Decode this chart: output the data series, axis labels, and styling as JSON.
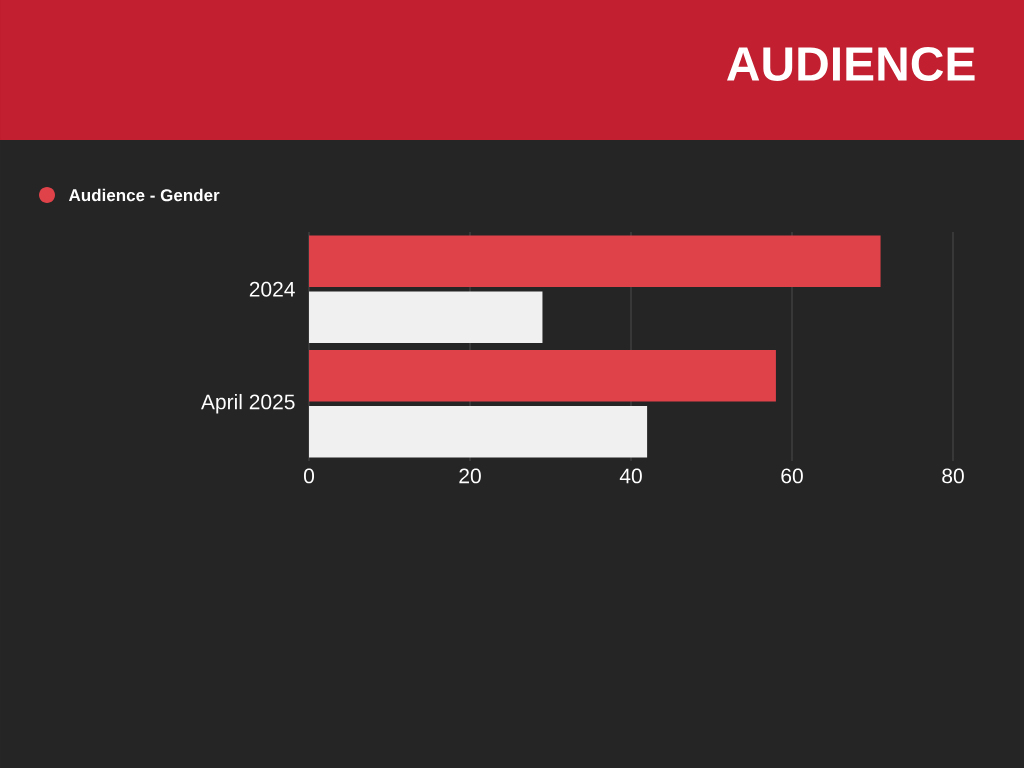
{
  "chart_data": {
    "type": "bar",
    "orientation": "horizontal",
    "title": "AUDIENCE",
    "categories": [
      "2024",
      "April 2025"
    ],
    "series": [
      {
        "name": "Audience - Gender",
        "color": "#e0424a",
        "values": [
          71,
          58
        ]
      },
      {
        "color": "#f0f0f0",
        "values": [
          29,
          42
        ]
      }
    ],
    "xlim": [
      0,
      80
    ],
    "xticks": [
      0,
      20,
      40,
      60,
      80
    ],
    "grid": "x",
    "legend": "top left"
  }
}
